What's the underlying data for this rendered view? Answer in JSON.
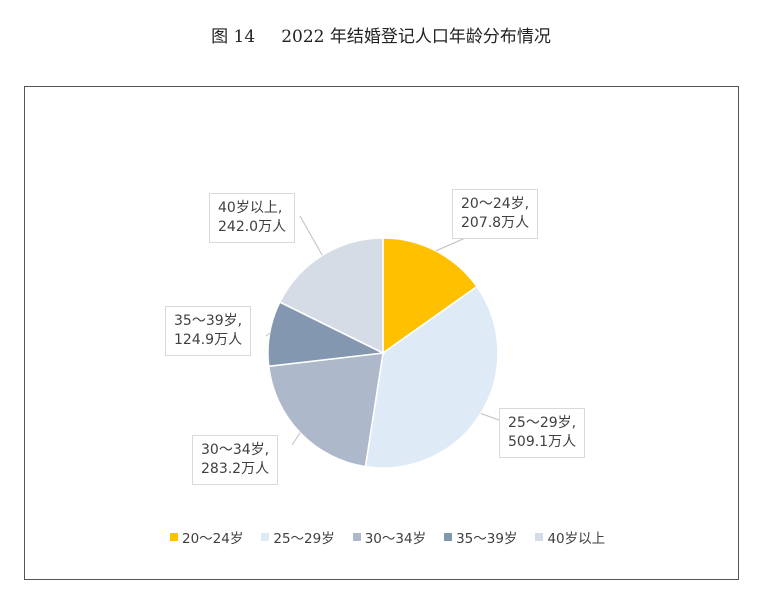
{
  "title": {
    "figure": "图 14",
    "text": "2022 年结婚登记人口年龄分布情况"
  },
  "chart_data": {
    "type": "pie",
    "title": "2022 年结婚登记人口年龄分布情况",
    "unit": "万人",
    "legend_position": "bottom",
    "start_angle": "12 o'clock, clockwise",
    "slices": [
      {
        "label": "20～24岁",
        "value": 207.8,
        "data_label": "20～24岁,",
        "value_label": "207.8万人",
        "color": "#FFC000"
      },
      {
        "label": "25～29岁",
        "value": 509.1,
        "data_label": "25～29岁,",
        "value_label": "509.1万人",
        "color": "#DEEBF7"
      },
      {
        "label": "30～34岁",
        "value": 283.2,
        "data_label": "30～34岁,",
        "value_label": "283.2万人",
        "color": "#ADB9CA"
      },
      {
        "label": "35～39岁",
        "value": 124.9,
        "data_label": "35～39岁,",
        "value_label": "124.9万人",
        "color": "#8497B0"
      },
      {
        "label": "40岁以上",
        "value": 242.0,
        "data_label": "40岁以上,",
        "value_label": "242.0万人",
        "color": "#D6DCE5"
      }
    ]
  }
}
